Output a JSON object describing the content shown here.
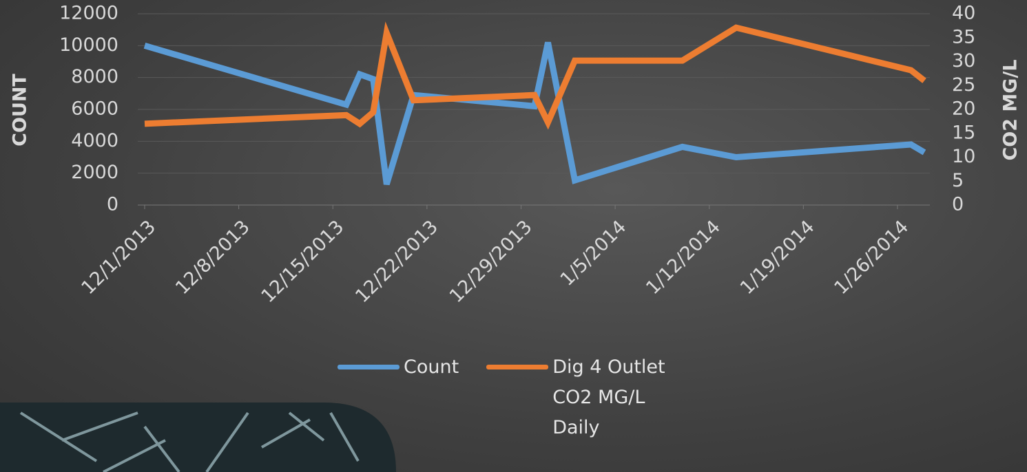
{
  "chart_data": {
    "type": "line",
    "x": [
      "12/1/2013",
      "12/16/2013",
      "12/17/2013",
      "12/18/2013",
      "12/19/2013",
      "12/21/2013",
      "12/30/2013",
      "12/31/2013",
      "1/2/2014",
      "1/10/2014",
      "1/14/2014",
      "1/27/2014",
      "1/28/2014"
    ],
    "series": [
      {
        "name": "Count",
        "color": "#5b9bd5",
        "values": [
          10000,
          6300,
          8200,
          7900,
          1300,
          6900,
          6200,
          10200,
          1550,
          3650,
          3000,
          3800,
          3300
        ]
      },
      {
        "name": "Dig 4 Outlet CO2 MG/L Daily",
        "color": "#ed7d31",
        "axis": "y2",
        "values": [
          17,
          18.8,
          17,
          19.4,
          36,
          21.9,
          23,
          17.3,
          30.2,
          30.2,
          37.1,
          28.2,
          26
        ]
      }
    ],
    "xlim": [
      "12/1/2013",
      "1/28/2014"
    ],
    "xticks": [
      "12/1/2013",
      "12/8/2013",
      "12/15/2013",
      "12/22/2013",
      "12/29/2013",
      "1/5/2014",
      "1/12/2014",
      "1/19/2014",
      "1/26/2014"
    ],
    "ylabel": "COUNT",
    "ylim": [
      0,
      12000
    ],
    "yticks": [
      0,
      2000,
      4000,
      6000,
      8000,
      10000,
      12000
    ],
    "y2label": "CO2 MG/L",
    "y2lim": [
      0,
      40
    ],
    "y2ticks": [
      0,
      5,
      10,
      15,
      20,
      25,
      30,
      35,
      40
    ],
    "grid": true,
    "legend": "bottom"
  }
}
